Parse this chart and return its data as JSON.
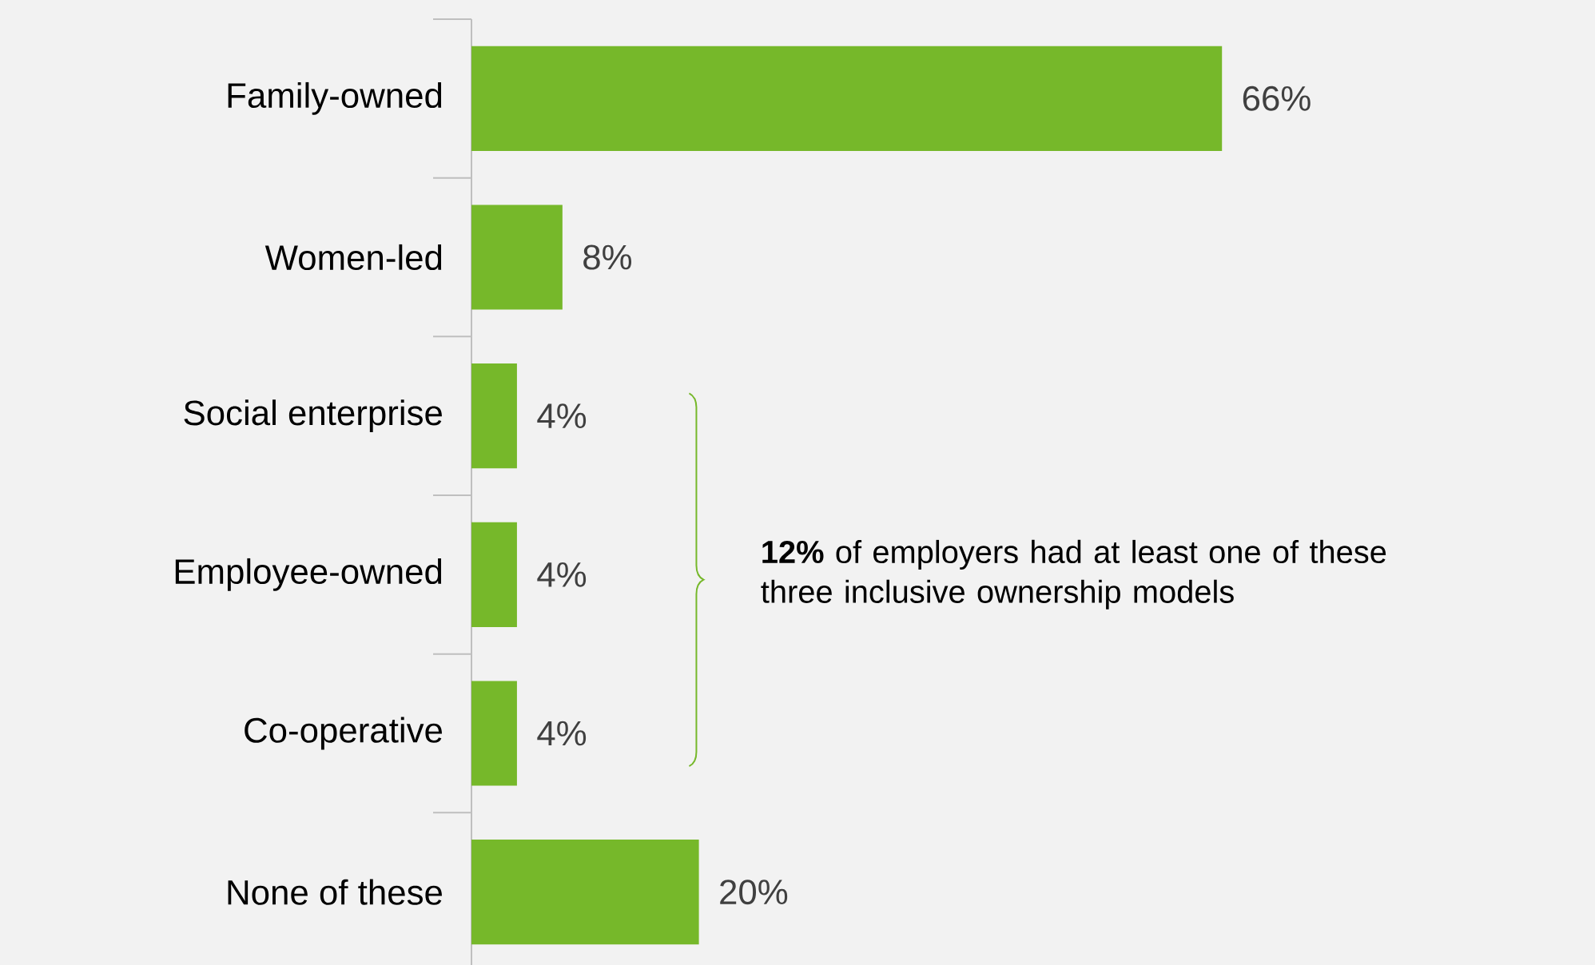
{
  "chart_data": {
    "type": "bar",
    "orientation": "horizontal",
    "categories": [
      "Family-owned",
      "Women-led",
      "Social enterprise",
      "Employee-owned",
      "Co-operative",
      "None of these"
    ],
    "values": [
      66,
      8,
      4,
      4,
      4,
      20
    ],
    "value_labels": [
      "66%",
      "8%",
      "4%",
      "4%",
      "4%",
      "20%"
    ],
    "color": "#76b82a",
    "annotations": [
      "**12%** of employers had at least one of these three inclusive ownership models"
    ],
    "grid": false,
    "legend": false
  }
}
